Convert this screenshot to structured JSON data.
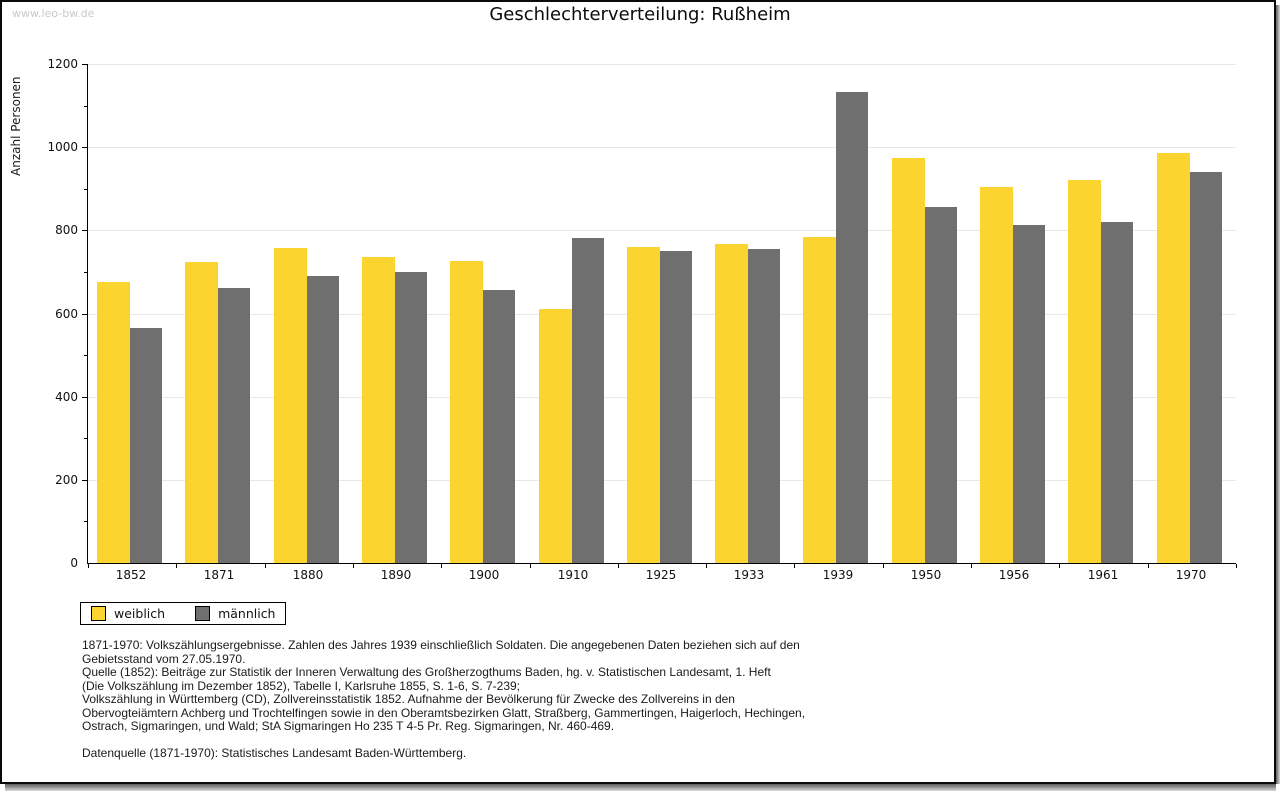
{
  "watermark": "www.leo-bw.de",
  "title": "Geschlechterverteilung: Rußheim",
  "chart_data": {
    "type": "bar",
    "title": "Geschlechterverteilung: Rußheim",
    "xlabel": "",
    "ylabel": "Anzahl Personen",
    "ylim": [
      0,
      1200
    ],
    "ytick_step": 200,
    "yminor_step": 100,
    "grid": true,
    "legend_position": "bottom-left",
    "categories": [
      "1852",
      "1871",
      "1880",
      "1890",
      "1900",
      "1910",
      "1925",
      "1933",
      "1939",
      "1950",
      "1956",
      "1961",
      "1970"
    ],
    "series": [
      {
        "name": "weiblich",
        "color": "#fcd42f",
        "values": [
          675,
          725,
          758,
          735,
          726,
          610,
          760,
          766,
          784,
          975,
          905,
          921,
          985
        ]
      },
      {
        "name": "männlich",
        "color": "#6f6f6f",
        "values": [
          565,
          661,
          690,
          700,
          657,
          782,
          750,
          756,
          1132,
          856,
          814,
          820,
          940
        ]
      }
    ]
  },
  "colors": {
    "weiblich": "#fcd42f",
    "maennlich": "#6f6f6f",
    "gridline": "#e8e8e8",
    "axis": "#000000",
    "watermark": "#c9c9c9"
  },
  "footer": {
    "lines": [
      "1871-1970: Volkszählungsergebnisse. Zahlen des Jahres 1939 einschließlich Soldaten. Die angegebenen Daten beziehen sich auf den",
      "Gebietsstand vom 27.05.1970.",
      "Quelle (1852): Beiträge zur Statistik der Inneren Verwaltung des Großherzogthums Baden, hg. v. Statistischen Landesamt, 1. Heft",
      "(Die Volkszählung im Dezember 1852), Tabelle I, Karlsruhe 1855, S. 1-6, S. 7-239;",
      "Volkszählung in Württemberg (CD), Zollvereinsstatistik 1852. Aufnahme der Bevölkerung für Zwecke des Zollvereins in den",
      "Obervogteiämtern Achberg und Trochtelfingen sowie in den Oberamtsbezirken Glatt, Straßberg, Gammertingen, Haigerloch, Hechingen,",
      "Ostrach, Sigmaringen, und Wald; StA Sigmaringen Ho 235 T 4-5 Pr. Reg. Sigmaringen, Nr. 460-469.",
      "",
      "Datenquelle (1871-1970): Statistisches Landesamt Baden-Württemberg."
    ]
  }
}
